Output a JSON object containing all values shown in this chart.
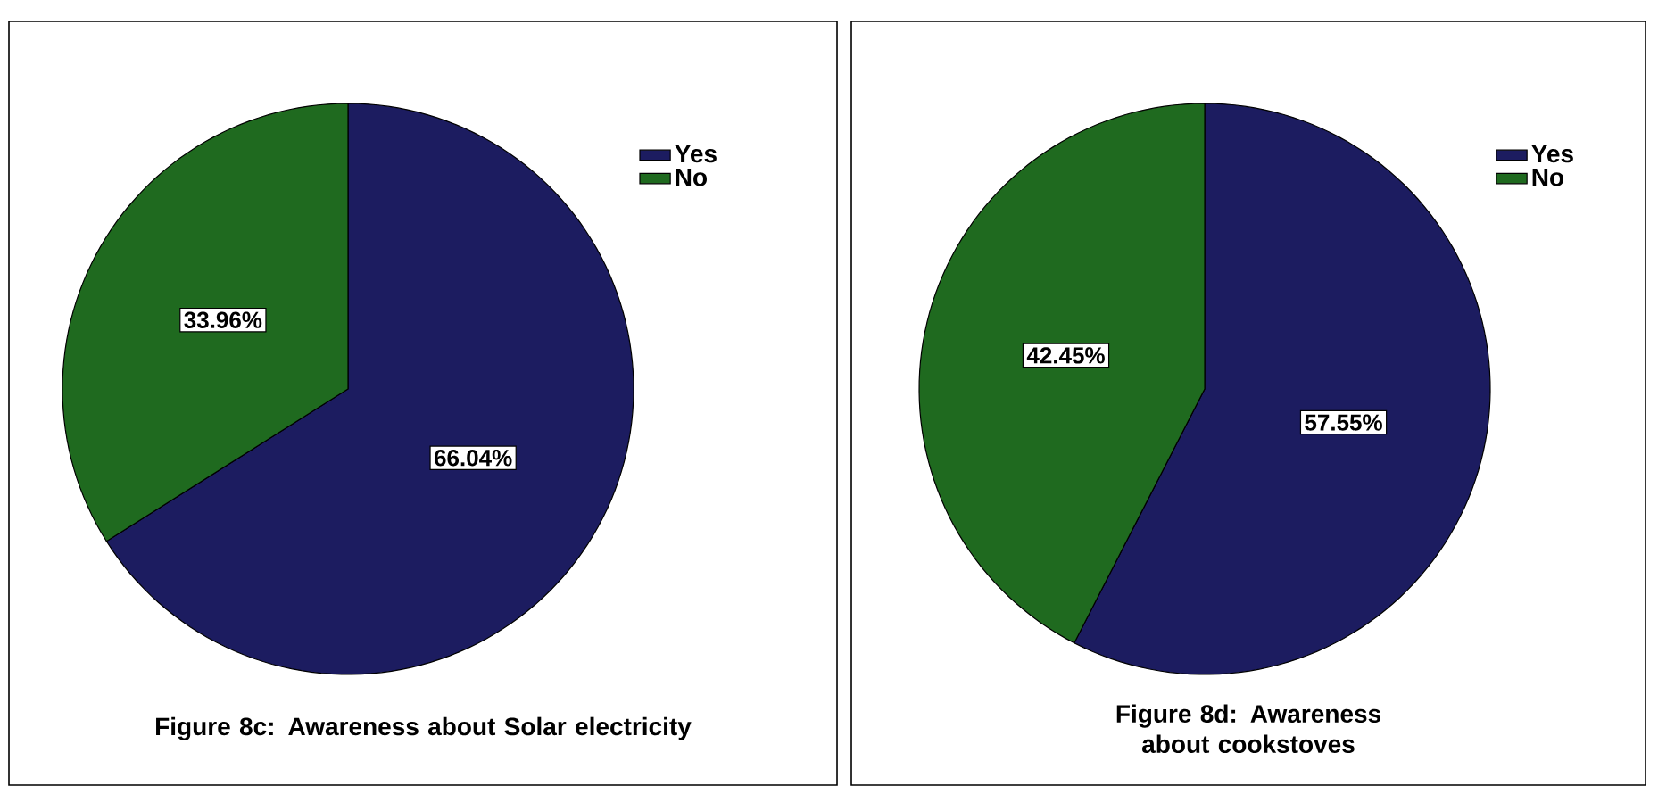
{
  "chart_data": [
    {
      "type": "pie",
      "title": "Figure 8c: Awareness about Solar electricity",
      "categories": [
        "Yes",
        "No"
      ],
      "values": [
        66.04,
        33.96
      ],
      "colors": [
        "#1c1c60",
        "#1f6a1f"
      ],
      "value_labels": [
        "66.04%",
        "33.96%"
      ],
      "legend": "top right"
    },
    {
      "type": "pie",
      "title": "Figure 8d: Awareness about cookstoves",
      "categories": [
        "Yes",
        "No"
      ],
      "values": [
        57.55,
        42.45
      ],
      "colors": [
        "#1c1c60",
        "#1f6a1f"
      ],
      "value_labels": [
        "57.55%",
        "42.45%"
      ],
      "legend": "top right"
    }
  ]
}
